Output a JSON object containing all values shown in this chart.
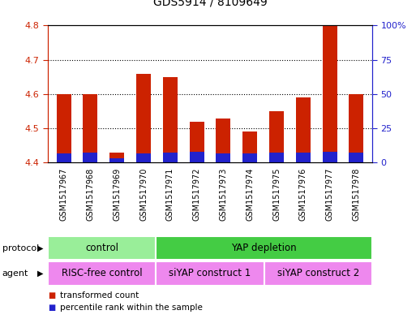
{
  "title": "GDS5914 / 8109649",
  "samples": [
    "GSM1517967",
    "GSM1517968",
    "GSM1517969",
    "GSM1517970",
    "GSM1517971",
    "GSM1517972",
    "GSM1517973",
    "GSM1517974",
    "GSM1517975",
    "GSM1517976",
    "GSM1517977",
    "GSM1517978"
  ],
  "transformed_count": [
    4.6,
    4.6,
    4.43,
    4.66,
    4.65,
    4.52,
    4.53,
    4.49,
    4.55,
    4.59,
    4.8,
    4.6
  ],
  "percentile_rank": [
    7.0,
    7.5,
    3.5,
    7.0,
    7.5,
    8.0,
    7.0,
    6.5,
    7.5,
    7.5,
    8.0,
    7.5
  ],
  "ylim_left": [
    4.4,
    4.8
  ],
  "ylim_right": [
    0,
    100
  ],
  "yticks_left": [
    4.4,
    4.5,
    4.6,
    4.7,
    4.8
  ],
  "yticks_right": [
    0,
    25,
    50,
    75,
    100
  ],
  "ytick_labels_right": [
    "0",
    "25",
    "50",
    "75",
    "100%"
  ],
  "bar_bottom": 4.4,
  "percentile_scale": 0.4,
  "red_color": "#cc2200",
  "blue_color": "#2222cc",
  "bar_width": 0.55,
  "protocol_groups": [
    {
      "label": "control",
      "start": 0,
      "end": 3,
      "color": "#99ee99"
    },
    {
      "label": "YAP depletion",
      "start": 4,
      "end": 11,
      "color": "#44cc44"
    }
  ],
  "agent_groups": [
    {
      "label": "RISC-free control",
      "start": 0,
      "end": 3,
      "color": "#ee88ee"
    },
    {
      "label": "siYAP construct 1",
      "start": 4,
      "end": 7,
      "color": "#ee88ee"
    },
    {
      "label": "siYAP construct 2",
      "start": 8,
      "end": 11,
      "color": "#ee88ee"
    }
  ],
  "protocol_label": "protocol",
  "agent_label": "agent",
  "legend_red": "transformed count",
  "legend_blue": "percentile rank within the sample",
  "gray_bg": "#cccccc",
  "plot_bg": "#ffffff",
  "title_fontsize": 10,
  "tick_fontsize": 8,
  "sample_fontsize": 7,
  "row_label_fontsize": 8,
  "row_text_fontsize": 8.5
}
